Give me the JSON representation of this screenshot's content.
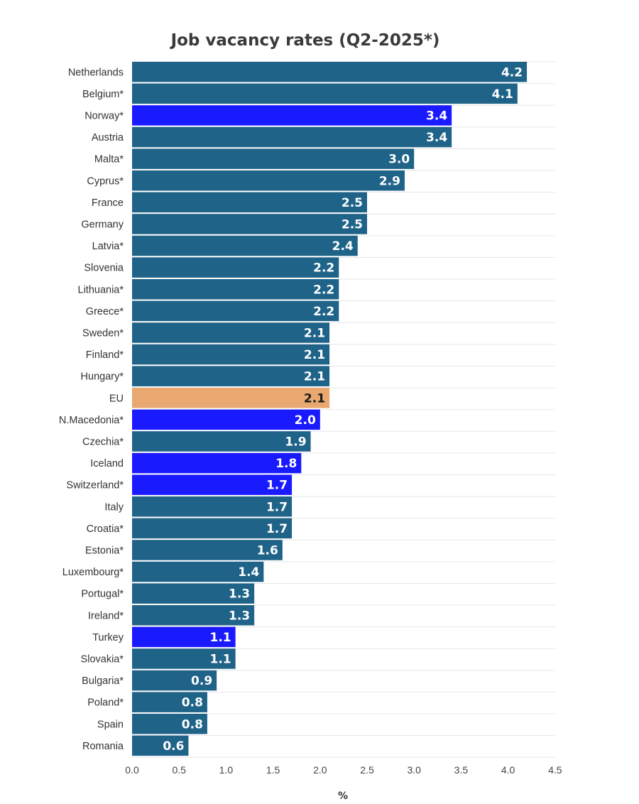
{
  "chart_data": {
    "type": "bar",
    "orientation": "horizontal",
    "title": "Job vacancy rates (Q2-2025*)",
    "xlabel": "%",
    "ylabel": "",
    "xlim": [
      0,
      4.5
    ],
    "x_ticks": [
      "0.0",
      "0.5",
      "1.0",
      "1.5",
      "2.0",
      "2.5",
      "3.0",
      "3.5",
      "4.0",
      "4.5"
    ],
    "grid": true,
    "legend": "none",
    "colors": {
      "eu_member": "#1f6389",
      "non_eu": "#1a1aff",
      "eu_average": "#e9a86f",
      "label_on_dark": "#ffffff",
      "label_on_eu": "#1a1a1a"
    },
    "categories": [
      "Netherlands",
      "Belgium*",
      "Norway*",
      "Austria",
      "Malta*",
      "Cyprus*",
      "France",
      "Germany",
      "Latvia*",
      "Slovenia",
      "Lithuania*",
      "Greece*",
      "Sweden*",
      "Finland*",
      "Hungary*",
      "EU",
      "N.Macedonia*",
      "Czechia*",
      "Iceland",
      "Switzerland*",
      "Italy",
      "Croatia*",
      "Estonia*",
      "Luxembourg*",
      "Portugal*",
      "Ireland*",
      "Turkey",
      "Slovakia*",
      "Bulgaria*",
      "Poland*",
      "Spain",
      "Romania"
    ],
    "values": [
      4.2,
      4.1,
      3.4,
      3.4,
      3.0,
      2.9,
      2.5,
      2.5,
      2.4,
      2.2,
      2.2,
      2.2,
      2.1,
      2.1,
      2.1,
      2.1,
      2.0,
      1.9,
      1.8,
      1.7,
      1.7,
      1.7,
      1.6,
      1.4,
      1.3,
      1.3,
      1.1,
      1.1,
      0.9,
      0.8,
      0.8,
      0.6
    ],
    "value_labels": [
      "4.2",
      "4.1",
      "3.4",
      "3.4",
      "3.0",
      "2.9",
      "2.5",
      "2.5",
      "2.4",
      "2.2",
      "2.2",
      "2.2",
      "2.1",
      "2.1",
      "2.1",
      "2.1",
      "2.0",
      "1.9",
      "1.8",
      "1.7",
      "1.7",
      "1.7",
      "1.6",
      "1.4",
      "1.3",
      "1.3",
      "1.1",
      "1.1",
      "0.9",
      "0.8",
      "0.8",
      "0.6"
    ],
    "groups": [
      "eu_member",
      "eu_member",
      "non_eu",
      "eu_member",
      "eu_member",
      "eu_member",
      "eu_member",
      "eu_member",
      "eu_member",
      "eu_member",
      "eu_member",
      "eu_member",
      "eu_member",
      "eu_member",
      "eu_member",
      "eu_average",
      "non_eu",
      "eu_member",
      "non_eu",
      "non_eu",
      "eu_member",
      "eu_member",
      "eu_member",
      "eu_member",
      "eu_member",
      "eu_member",
      "non_eu",
      "eu_member",
      "eu_member",
      "eu_member",
      "eu_member",
      "eu_member"
    ]
  }
}
